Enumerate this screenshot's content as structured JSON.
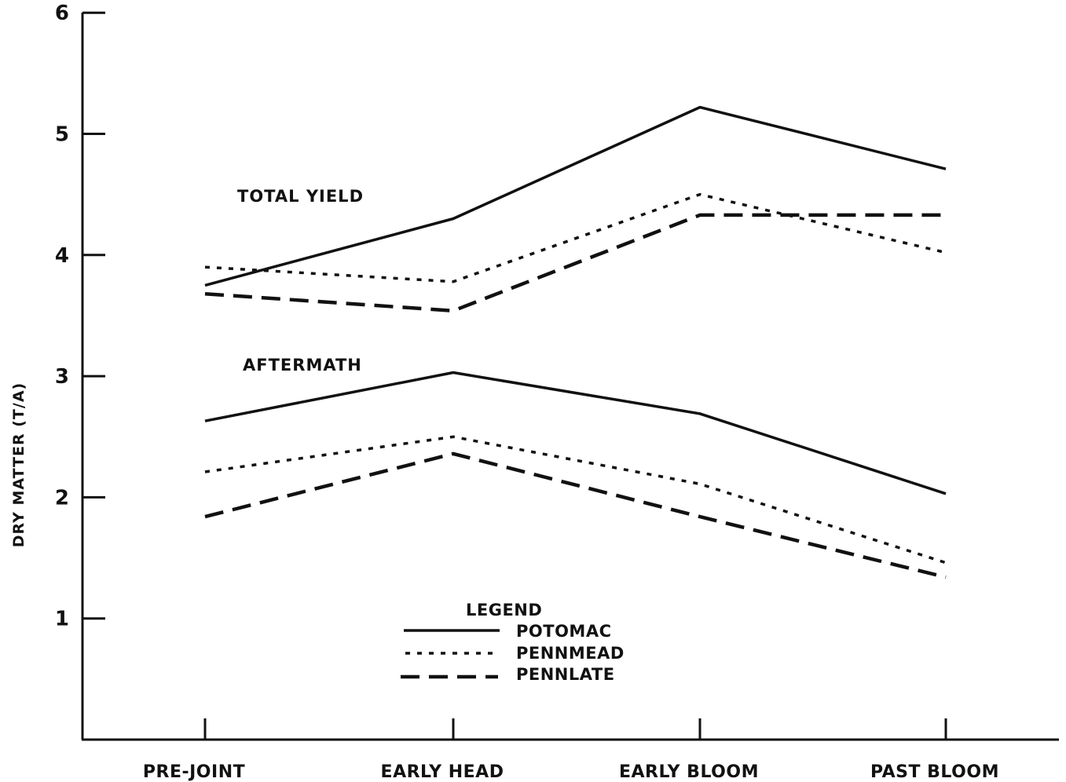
{
  "chart_data": {
    "type": "line",
    "ylabel": "DRY MATTER (T/A)",
    "xlabel": "",
    "categories": [
      "PRE-JOINT",
      "EARLY HEAD",
      "EARLY BLOOM",
      "PAST BLOOM"
    ],
    "ylim": [
      0,
      6
    ],
    "yticks": [
      "1",
      "2",
      "3",
      "4",
      "5",
      "6"
    ],
    "grid": false,
    "groups": [
      {
        "label": "TOTAL YIELD",
        "series": [
          {
            "name": "POTOMAC",
            "values": [
              3.75,
              4.3,
              5.22,
              4.71
            ]
          },
          {
            "name": "PENNMEAD",
            "values": [
              3.9,
              3.78,
              4.5,
              4.02
            ]
          },
          {
            "name": "PENNLATE",
            "values": [
              3.68,
              3.54,
              4.33,
              4.33
            ]
          }
        ]
      },
      {
        "label": "AFTERMATH",
        "series": [
          {
            "name": "POTOMAC",
            "values": [
              2.63,
              3.03,
              2.69,
              2.03
            ]
          },
          {
            "name": "PENNMEAD",
            "values": [
              2.21,
              2.5,
              2.11,
              1.46
            ]
          },
          {
            "name": "PENNLATE",
            "values": [
              1.84,
              2.36,
              1.84,
              1.34
            ]
          }
        ]
      }
    ],
    "legend": {
      "title": "LEGEND",
      "placement": "bottom-center",
      "entries": [
        {
          "name": "POTOMAC",
          "style": "solid"
        },
        {
          "name": "PENNMEAD",
          "style": "dotted"
        },
        {
          "name": "PENNLATE",
          "style": "dashed"
        }
      ]
    },
    "line_color": "#111111"
  }
}
